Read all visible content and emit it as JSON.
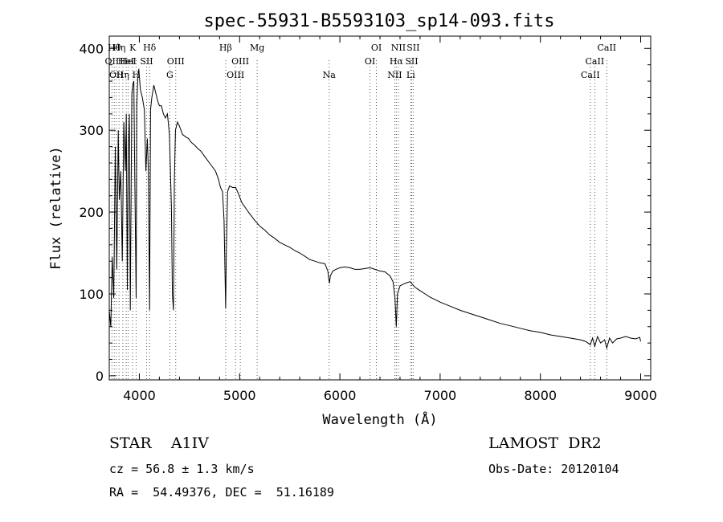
{
  "chart_data": {
    "type": "line",
    "title": "spec-55931-B5593103_sp14-093.fits",
    "xlabel": "Wavelength (Å)",
    "ylabel": "Flux (relative)",
    "xlim": [
      3700,
      9100
    ],
    "ylim": [
      -5,
      415
    ],
    "xticks": [
      4000,
      5000,
      6000,
      7000,
      8000,
      9000
    ],
    "yticks": [
      0,
      100,
      200,
      300,
      400
    ],
    "grid": false,
    "legend": "none",
    "line_color": "#000000",
    "line_markers": [
      {
        "w": 3727,
        "row": 1,
        "label": "OII"
      },
      {
        "w": 3750,
        "row": 0,
        "label": "Hθ"
      },
      {
        "w": 3771,
        "row": 2,
        "label": "OII"
      },
      {
        "w": 3798,
        "row": 0,
        "label": "Hη"
      },
      {
        "w": 3835,
        "row": 2,
        "label": "Hη"
      },
      {
        "w": 3869,
        "row": 1,
        "label": "HeI"
      },
      {
        "w": 3889,
        "row": 1,
        "label": "HeI"
      },
      {
        "w": 3934,
        "row": 0,
        "label": "K"
      },
      {
        "w": 3968,
        "row": 2,
        "label": "H"
      },
      {
        "w": 4072,
        "row": 1,
        "label": "SII"
      },
      {
        "w": 4102,
        "row": 0,
        "label": "Hδ"
      },
      {
        "w": 4304,
        "row": 2,
        "label": "G"
      },
      {
        "w": 4363,
        "row": 1,
        "label": "OIII"
      },
      {
        "w": 4861,
        "row": 0,
        "label": "Hβ"
      },
      {
        "w": 4959,
        "row": 2,
        "label": "OIII"
      },
      {
        "w": 5007,
        "row": 1,
        "label": "OIII"
      },
      {
        "w": 5175,
        "row": 0,
        "label": "Mg"
      },
      {
        "w": 5893,
        "row": 2,
        "label": "Na"
      },
      {
        "w": 6300,
        "row": 1,
        "label": "OI"
      },
      {
        "w": 6364,
        "row": 0,
        "label": "OI"
      },
      {
        "w": 6548,
        "row": 2,
        "label": "NII"
      },
      {
        "w": 6563,
        "row": 1,
        "label": "Hα"
      },
      {
        "w": 6584,
        "row": 0,
        "label": "NII"
      },
      {
        "w": 6707,
        "row": 2,
        "label": "Li"
      },
      {
        "w": 6716,
        "row": 1,
        "label": "SII"
      },
      {
        "w": 6731,
        "row": 0,
        "label": "SII"
      },
      {
        "w": 8498,
        "row": 2,
        "label": "CaII"
      },
      {
        "w": 8542,
        "row": 1,
        "label": "CaII"
      },
      {
        "w": 8662,
        "row": 0,
        "label": "CaII"
      }
    ],
    "x": [
      3700,
      3715,
      3730,
      3745,
      3760,
      3775,
      3790,
      3800,
      3815,
      3830,
      3845,
      3860,
      3870,
      3880,
      3890,
      3900,
      3910,
      3925,
      3935,
      3945,
      3955,
      3968,
      3975,
      3985,
      3995,
      4010,
      4030,
      4050,
      4065,
      4080,
      4090,
      4102,
      4112,
      4125,
      4145,
      4165,
      4185,
      4200,
      4220,
      4240,
      4260,
      4280,
      4300,
      4320,
      4330,
      4340,
      4350,
      4360,
      4380,
      4400,
      4430,
      4460,
      4490,
      4520,
      4550,
      4580,
      4610,
      4640,
      4670,
      4700,
      4730,
      4760,
      4790,
      4810,
      4830,
      4845,
      4855,
      4861,
      4867,
      4880,
      4900,
      4930,
      4960,
      4990,
      5020,
      5060,
      5100,
      5150,
      5200,
      5250,
      5300,
      5350,
      5400,
      5450,
      5500,
      5550,
      5600,
      5650,
      5700,
      5750,
      5800,
      5850,
      5880,
      5890,
      5896,
      5905,
      5930,
      5960,
      6000,
      6050,
      6100,
      6150,
      6200,
      6250,
      6300,
      6350,
      6400,
      6450,
      6500,
      6530,
      6550,
      6563,
      6575,
      6600,
      6650,
      6700,
      6750,
      6800,
      6850,
      6900,
      6950,
      7000,
      7100,
      7200,
      7300,
      7400,
      7500,
      7600,
      7700,
      7800,
      7900,
      8000,
      8100,
      8200,
      8300,
      8400,
      8450,
      8498,
      8520,
      8542,
      8570,
      8600,
      8640,
      8662,
      8690,
      8720,
      8760,
      8800,
      8850,
      8900,
      8950,
      8990,
      9000
    ],
    "y": [
      80,
      60,
      145,
      95,
      280,
      130,
      300,
      215,
      250,
      140,
      310,
      250,
      320,
      105,
      270,
      320,
      80,
      345,
      355,
      360,
      240,
      95,
      330,
      365,
      375,
      350,
      340,
      325,
      250,
      290,
      250,
      80,
      325,
      340,
      355,
      345,
      335,
      330,
      330,
      320,
      315,
      320,
      295,
      205,
      100,
      80,
      240,
      300,
      310,
      305,
      295,
      292,
      290,
      285,
      282,
      278,
      275,
      270,
      265,
      260,
      255,
      250,
      240,
      230,
      225,
      190,
      120,
      82,
      150,
      225,
      232,
      230,
      230,
      222,
      212,
      205,
      198,
      190,
      183,
      178,
      172,
      168,
      163,
      160,
      157,
      153,
      150,
      146,
      142,
      140,
      138,
      137,
      128,
      118,
      113,
      122,
      128,
      130,
      132,
      133,
      132,
      130,
      130,
      131,
      132,
      130,
      128,
      127,
      122,
      115,
      95,
      60,
      100,
      110,
      113,
      115,
      108,
      104,
      100,
      96,
      93,
      90,
      85,
      80,
      76,
      72,
      68,
      64,
      61,
      58,
      55,
      53,
      50,
      48,
      46,
      44,
      42,
      38,
      46,
      36,
      48,
      40,
      44,
      34,
      46,
      40,
      45,
      46,
      48,
      46,
      45,
      47,
      42
    ]
  },
  "info": {
    "object": "STAR    A1IV",
    "survey": "LAMOST  DR2",
    "cz": "cz = 56.8 ± 1.3 km/s",
    "obs_date": "Obs-Date: 20120104",
    "coords": "RA =  54.49376, DEC =  51.16189"
  }
}
